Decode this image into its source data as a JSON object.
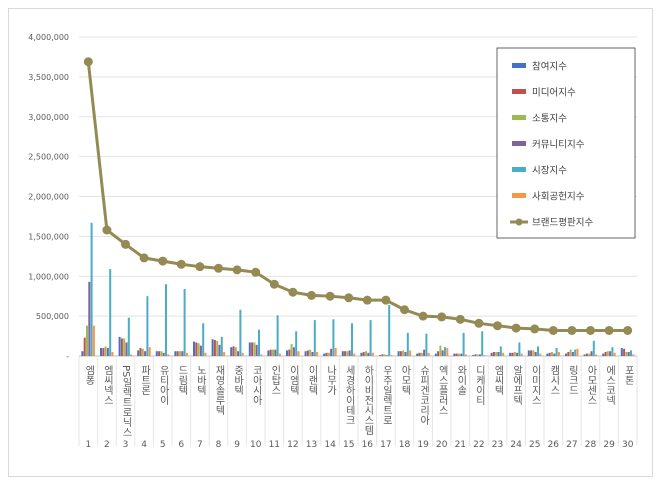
{
  "chart_data": {
    "type": "bar+line",
    "categories": [
      "엠퐁",
      "엠씨넥스",
      "PS일렉트로닉스",
      "파트론",
      "유티아이",
      "드림텍",
      "노바텍",
      "재영솔루텍",
      "중바텍",
      "코아시아",
      "인탑스",
      "이엠텍",
      "이랜텍",
      "나무가",
      "세경하이테크",
      "하이비전시스템",
      "우주일렉트로",
      "아모텍",
      "슈피겐코리아",
      "엑스플러스",
      "와이솔",
      "디케이티",
      "엠씨텍",
      "알에프텍",
      "이미지스",
      "캠시스",
      "링크드",
      "아모센스",
      "에스코넥",
      "포톤"
    ],
    "ranks": [
      "1",
      "2",
      "3",
      "4",
      "5",
      "6",
      "7",
      "8",
      "9",
      "10",
      "11",
      "12",
      "13",
      "14",
      "15",
      "16",
      "17",
      "18",
      "19",
      "20",
      "21",
      "22",
      "23",
      "24",
      "25",
      "26",
      "27",
      "28",
      "29",
      "30"
    ],
    "ylim": [
      0,
      4000000
    ],
    "yticks": [
      "-",
      "500,000",
      "1,000,000",
      "1,500,000",
      "2,000,000",
      "2,500,000",
      "3,000,000",
      "3,500,000",
      "4,000,000"
    ],
    "grid": true,
    "legend_position": "top-right",
    "series": [
      {
        "name": "참여지수",
        "type": "bar",
        "color": "#4472c4",
        "values": [
          60000,
          100000,
          240000,
          70000,
          60000,
          60000,
          180000,
          210000,
          110000,
          170000,
          70000,
          70000,
          60000,
          30000,
          60000,
          40000,
          10000,
          60000,
          30000,
          30000,
          30000,
          10000,
          40000,
          40000,
          70000,
          30000,
          30000,
          20000,
          30000,
          100000
        ]
      },
      {
        "name": "미디어지수",
        "type": "bar",
        "color": "#c0504d",
        "values": [
          230000,
          100000,
          220000,
          100000,
          60000,
          60000,
          170000,
          200000,
          120000,
          170000,
          80000,
          80000,
          70000,
          40000,
          60000,
          50000,
          20000,
          60000,
          40000,
          60000,
          30000,
          20000,
          50000,
          40000,
          70000,
          40000,
          50000,
          30000,
          50000,
          90000
        ]
      },
      {
        "name": "소통지수",
        "type": "bar",
        "color": "#9bbb59",
        "values": [
          380000,
          120000,
          220000,
          90000,
          60000,
          60000,
          160000,
          190000,
          110000,
          170000,
          80000,
          150000,
          80000,
          40000,
          60000,
          60000,
          20000,
          70000,
          40000,
          130000,
          30000,
          20000,
          50000,
          50000,
          70000,
          50000,
          80000,
          30000,
          60000,
          50000
        ]
      },
      {
        "name": "커뮤니티지수",
        "type": "bar",
        "color": "#8064a2",
        "values": [
          930000,
          100000,
          170000,
          60000,
          40000,
          60000,
          130000,
          140000,
          60000,
          140000,
          80000,
          110000,
          50000,
          90000,
          70000,
          40000,
          10000,
          50000,
          80000,
          70000,
          30000,
          20000,
          50000,
          40000,
          50000,
          30000,
          50000,
          60000,
          60000,
          50000
        ]
      },
      {
        "name": "시장지수",
        "type": "bar",
        "color": "#4bacc6",
        "values": [
          1670000,
          1090000,
          480000,
          750000,
          900000,
          840000,
          410000,
          240000,
          580000,
          330000,
          510000,
          310000,
          450000,
          460000,
          410000,
          450000,
          640000,
          290000,
          280000,
          110000,
          290000,
          310000,
          120000,
          170000,
          120000,
          100000,
          80000,
          190000,
          110000,
          70000
        ]
      },
      {
        "name": "사회공헌지수",
        "type": "bar",
        "color": "#f79646",
        "values": [
          380000,
          50000,
          20000,
          110000,
          20000,
          40000,
          40000,
          50000,
          40000,
          20000,
          30000,
          60000,
          50000,
          100000,
          30000,
          40000,
          10000,
          70000,
          40000,
          100000,
          20000,
          10000,
          40000,
          30000,
          30000,
          50000,
          90000,
          20000,
          40000,
          20000
        ]
      },
      {
        "name": "브랜드평판지수",
        "type": "line",
        "color": "#948a54",
        "values": [
          3690000,
          1580000,
          1400000,
          1230000,
          1190000,
          1150000,
          1120000,
          1100000,
          1080000,
          1050000,
          900000,
          800000,
          760000,
          750000,
          730000,
          700000,
          700000,
          580000,
          500000,
          490000,
          460000,
          410000,
          380000,
          350000,
          340000,
          320000,
          320000,
          320000,
          320000,
          320000
        ]
      }
    ]
  }
}
